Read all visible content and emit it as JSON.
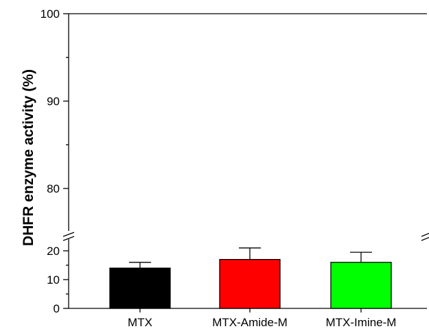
{
  "chart_data": {
    "type": "bar",
    "ylabel": "DHFR enzyme activity (%)",
    "xlabel": "",
    "categories": [
      "MTX",
      "MTX-Amide-M",
      "MTX-Imine-M"
    ],
    "values": [
      14,
      17,
      16
    ],
    "errors": [
      2,
      4,
      3.5
    ],
    "colors": [
      "#000000",
      "#ff0000",
      "#00ff00"
    ],
    "axis_break": true,
    "segments": [
      {
        "ylim": [
          0,
          25
        ],
        "ticks": [
          0,
          10,
          20
        ]
      },
      {
        "ylim": [
          75,
          100
        ],
        "ticks": [
          80,
          90,
          100
        ]
      }
    ],
    "grid": false,
    "legend": "none"
  }
}
